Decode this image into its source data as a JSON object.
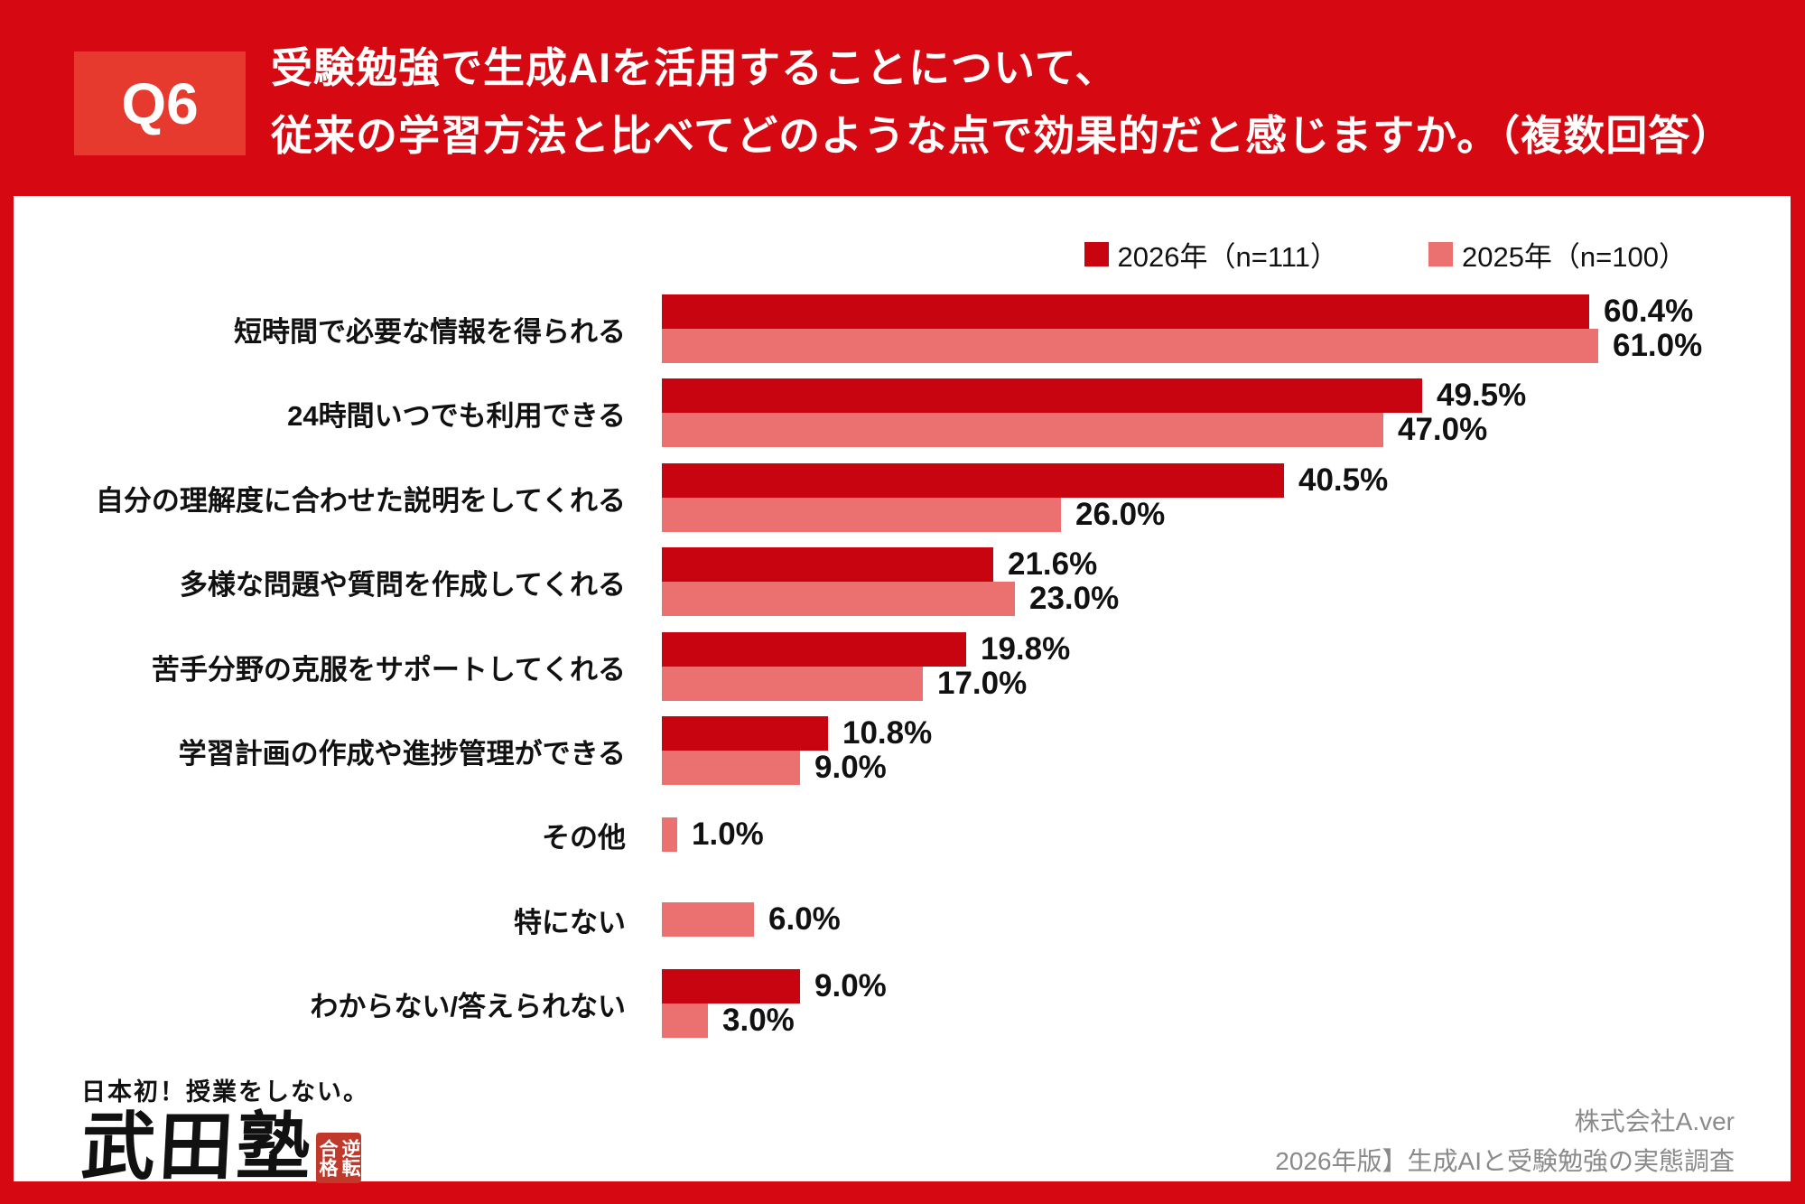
{
  "header": {
    "badge": "Q6",
    "title_line1": "受験勉強で生成AIを活用することについて、",
    "title_line2": "従来の学習方法と比べてどのような点で効果的だと感じますか。（複数回答）"
  },
  "legend": [
    {
      "label": "2026年（n=111）",
      "color": "#C70410"
    },
    {
      "label": "2025年（n=100）",
      "color": "#EB7170"
    }
  ],
  "chart_data": {
    "type": "bar",
    "orientation": "horizontal",
    "unit": "%",
    "xlim": [
      0,
      62
    ],
    "grid": false,
    "legend_position": "top-right",
    "categories": [
      "短時間で必要な情報を得られる",
      "24時間いつでも利用できる",
      "自分の理解度に合わせた説明をしてくれる",
      "多様な問題や質問を作成してくれる",
      "苦手分野の克服をサポートしてくれる",
      "学習計画の作成や進捗管理ができる",
      "その他",
      "特にない",
      "わからない/答えられない"
    ],
    "series": [
      {
        "name": "2026年（n=111）",
        "color": "#C70410",
        "values": [
          60.4,
          49.5,
          40.5,
          21.6,
          19.8,
          10.8,
          null,
          null,
          9.0
        ]
      },
      {
        "name": "2025年（n=100）",
        "color": "#EB7170",
        "values": [
          61.0,
          47.0,
          26.0,
          23.0,
          17.0,
          9.0,
          1.0,
          6.0,
          3.0
        ]
      }
    ]
  },
  "footer": {
    "logo_tagline": "日本初！授業をしない。",
    "logo_name": "武田塾",
    "seal_right": "逆転",
    "seal_left": "合格",
    "company": "株式会社A.ver",
    "survey": "2026年版】生成AIと受験勉強の実態調査"
  },
  "colors": {
    "background_red": "#D60812",
    "badge_red": "#E63A2E",
    "bar_2026": "#C70410",
    "bar_2025": "#EB7170",
    "text_dark": "#111111",
    "credit_gray": "#8A8A8A"
  }
}
